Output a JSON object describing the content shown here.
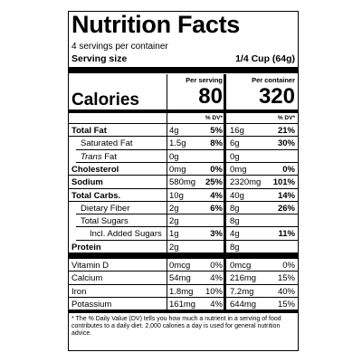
{
  "title": "Nutrition Facts",
  "servings": "4 servings per container",
  "serving_size": {
    "label": "Serving size",
    "value": "1/4 Cup (64g)"
  },
  "columns": [
    "Per serving",
    "Per container"
  ],
  "calories": {
    "label": "Calories",
    "values": [
      80,
      320
    ]
  },
  "dv_header": [
    "% DV*",
    "% DV*"
  ],
  "nutrients": [
    {
      "name": "Total Fat",
      "cells": [
        "4g",
        "5%",
        "16g",
        "21%"
      ],
      "sub": [
        {
          "name": "Saturated Fat",
          "cells": [
            "1.5g",
            "8%",
            "6g",
            "30%"
          ]
        },
        {
          "name_italic": "Trans",
          "name": "Fat",
          "cells": [
            "0g",
            null,
            "0g",
            null
          ]
        }
      ]
    },
    {
      "name": "Cholesterol",
      "cells": [
        "0mg",
        "0%",
        "0mg",
        "0%"
      ]
    },
    {
      "name": "Sodium",
      "cells": [
        "580mg",
        "25%",
        "2320mg",
        "101%"
      ]
    },
    {
      "name": "Total Carbs.",
      "cells": [
        "10g",
        "4%",
        "40g",
        "14%"
      ],
      "sub": [
        {
          "name": "Dietary Fiber",
          "cells": [
            "2g",
            "6%",
            "8g",
            "26%"
          ]
        },
        {
          "name": "Total Sugars",
          "cells": [
            "2g",
            null,
            "8g",
            null
          ],
          "sub": [
            {
              "name": "Incl. Added Sugars",
              "cells": [
                "1g",
                "3%",
                "4g",
                "11%"
              ]
            }
          ]
        }
      ]
    },
    {
      "name": "Protein",
      "cells": [
        "2g",
        null,
        "8g",
        null
      ]
    }
  ],
  "micronutrients": [
    {
      "name": "Vitamin D",
      "cells": [
        "0mcg",
        "0%",
        "0mcg",
        "0%"
      ]
    },
    {
      "name": "Calcium",
      "cells": [
        "54mg",
        "4%",
        "216mg",
        "15%"
      ]
    },
    {
      "name": "Iron",
      "cells": [
        "1.8mg",
        "10%",
        "7.2mg",
        "40%"
      ]
    },
    {
      "name": "Potassium",
      "cells": [
        "161mg",
        "4%",
        "644mg",
        "15%"
      ]
    }
  ],
  "footnote": "* The % Daily Value (DV) tells you how much a nutrient in a serving of food contributes to a daily diet. 2,000 calories a day is used for general nutrition advice."
}
